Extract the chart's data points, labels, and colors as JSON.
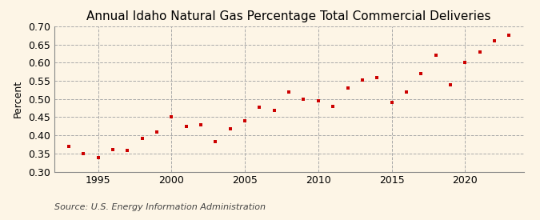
{
  "title": "Annual Idaho Natural Gas Percentage Total Commercial Deliveries",
  "ylabel": "Percent",
  "source": "Source: U.S. Energy Information Administration",
  "background_color": "#fdf5e6",
  "marker_color": "#cc0000",
  "xlim": [
    1992,
    2024
  ],
  "ylim": [
    0.3,
    0.7
  ],
  "yticks": [
    0.3,
    0.35,
    0.4,
    0.45,
    0.5,
    0.55,
    0.6,
    0.65,
    0.7
  ],
  "xticks": [
    1995,
    2000,
    2005,
    2010,
    2015,
    2020
  ],
  "years": [
    1993,
    1994,
    1995,
    1996,
    1997,
    1998,
    1999,
    2000,
    2001,
    2002,
    2003,
    2004,
    2005,
    2006,
    2007,
    2008,
    2009,
    2010,
    2011,
    2012,
    2013,
    2014,
    2015,
    2016,
    2017,
    2018,
    2019,
    2020,
    2021,
    2022,
    2023
  ],
  "values": [
    0.37,
    0.35,
    0.338,
    0.36,
    0.358,
    0.392,
    0.41,
    0.45,
    0.425,
    0.43,
    0.383,
    0.418,
    0.44,
    0.478,
    0.468,
    0.52,
    0.5,
    0.495,
    0.48,
    0.53,
    0.553,
    0.56,
    0.49,
    0.52,
    0.57,
    0.62,
    0.54,
    0.6,
    0.63,
    0.66,
    0.675
  ],
  "vline_years": [
    1995,
    2000,
    2005,
    2010,
    2015,
    2020
  ],
  "title_fontsize": 11,
  "tick_fontsize": 9,
  "source_fontsize": 8
}
